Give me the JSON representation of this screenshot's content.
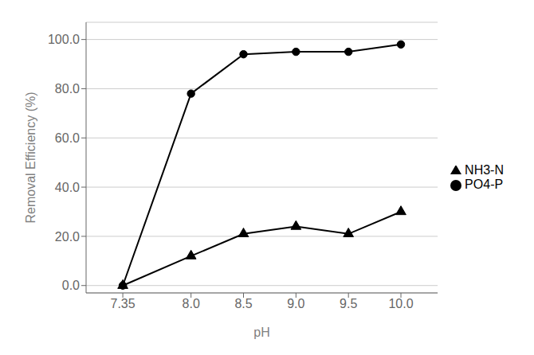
{
  "chart_data": {
    "type": "line",
    "x": [
      7.35,
      8.0,
      8.5,
      9.0,
      9.5,
      10.0
    ],
    "series": [
      {
        "name": "PO4-P",
        "color": "#000000",
        "marker": "circle",
        "values": [
          0.0,
          78.0,
          94.0,
          95.0,
          95.0,
          98.0
        ]
      },
      {
        "name": "NH3-N",
        "color": "#000000",
        "marker": "triangle",
        "values": [
          0.0,
          12.0,
          21.0,
          24.0,
          21.0,
          30.0
        ]
      }
    ],
    "x_label": "pH",
    "y_label": "Removal Efficiency (%)",
    "xlim": [
      7.0,
      10.35
    ],
    "ylim": [
      -3,
      107
    ],
    "xticks": [
      7.35,
      {
        "value": 8,
        "label": "8.0"
      },
      8.5,
      {
        "value": 9,
        "label": "9.0"
      },
      9.5,
      {
        "value": 10,
        "label": "10.0"
      }
    ],
    "yticks": [
      {
        "value": 0,
        "label": "0.0"
      },
      {
        "value": 20,
        "label": "20.0"
      },
      {
        "value": 40,
        "label": "40.0"
      },
      {
        "value": 60,
        "label": "60.0"
      },
      {
        "value": 80,
        "label": "80.0"
      },
      {
        "value": 100,
        "label": "100.0"
      }
    ],
    "grid": true,
    "legend": "right"
  }
}
